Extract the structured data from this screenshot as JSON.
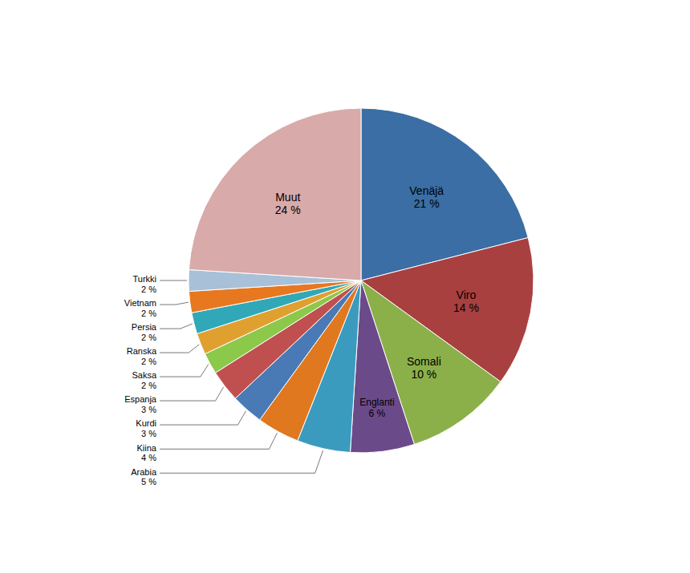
{
  "chart_data": {
    "type": "pie",
    "categories": [
      "Venäjä",
      "Viro",
      "Somali",
      "Englanti",
      "Arabia",
      "Kiina",
      "Kurdi",
      "Espanja",
      "Saksa",
      "Ranska",
      "Persia",
      "Vietnam",
      "Turkki",
      "Muut"
    ],
    "values": [
      21,
      14,
      10,
      6,
      5,
      4,
      3,
      3,
      2,
      2,
      2,
      2,
      2,
      24
    ],
    "value_labels": [
      "21 %",
      "14 %",
      "10 %",
      "6 %",
      "5 %",
      "4 %",
      "3 %",
      "3 %",
      "2 %",
      "2 %",
      "2 %",
      "2 %",
      "2 %",
      "24 %"
    ],
    "colors": [
      "#3A6EA5",
      "#A84040",
      "#8BB04A",
      "#6B4A8A",
      "#3A9BBF",
      "#E07820",
      "#4A7AB5",
      "#C05050",
      "#8CC84A",
      "#E0A030",
      "#30A8B8",
      "#E87820",
      "#A8C0D8",
      "#D8AAAA"
    ],
    "data_labels": true
  }
}
